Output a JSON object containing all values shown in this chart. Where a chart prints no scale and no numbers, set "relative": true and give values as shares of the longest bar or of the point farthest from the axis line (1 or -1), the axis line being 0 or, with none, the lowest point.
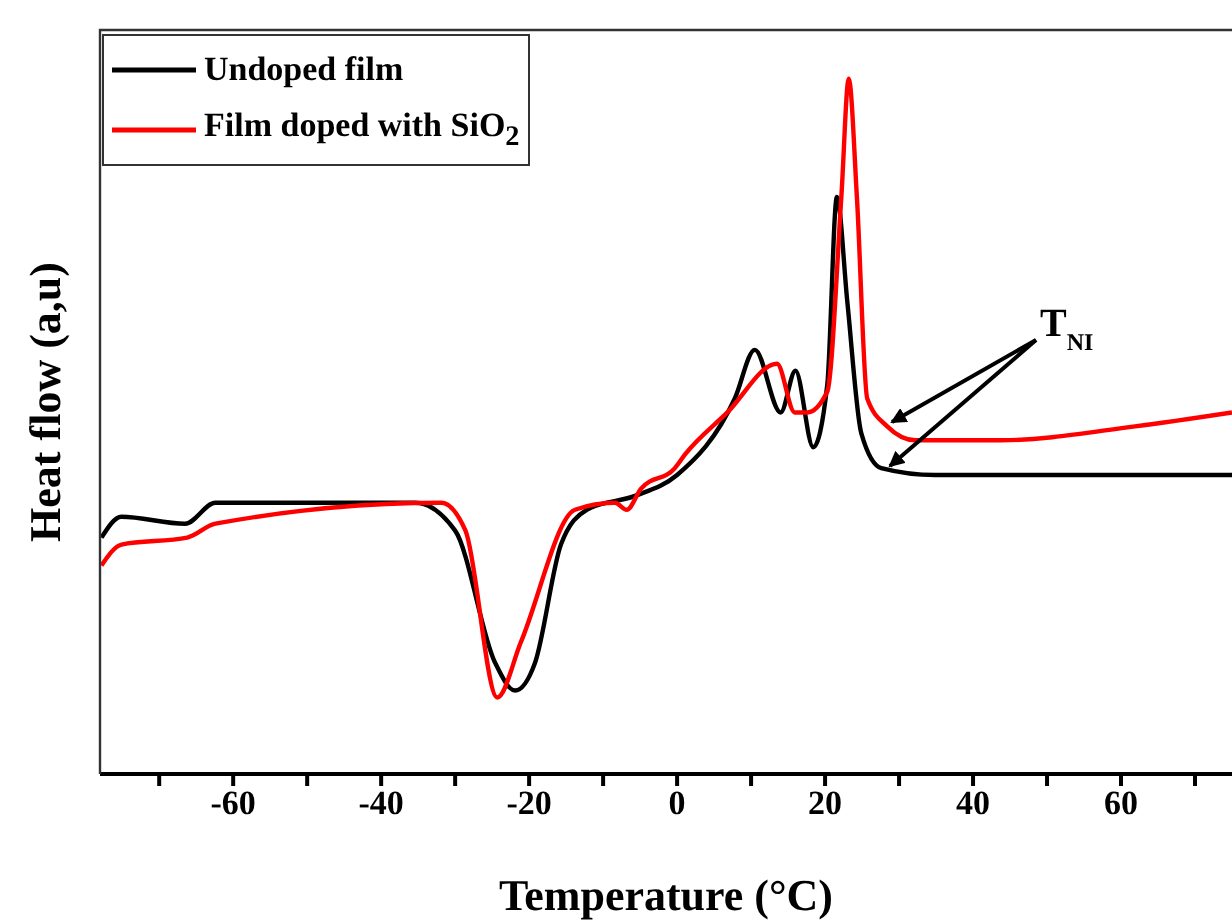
{
  "chart_data": {
    "type": "line",
    "relative": true,
    "xlabel": "Temperature (°C)",
    "ylabel": "Heat flow (a,u)",
    "xlim": [
      -78,
      75
    ],
    "xticks": [
      {
        "value": -70,
        "label": null
      },
      -60,
      {
        "value": -50,
        "label": null
      },
      -40,
      {
        "value": -30,
        "label": null
      },
      -20,
      {
        "value": -10,
        "label": null
      },
      0,
      {
        "value": 10,
        "label": null
      },
      20,
      {
        "value": 30,
        "label": null
      },
      40,
      {
        "value": 50,
        "label": null
      },
      60,
      {
        "value": 70,
        "label": null
      }
    ],
    "legend": "top left",
    "grid": false,
    "marker": "none",
    "line_style": "solid",
    "annotations": [
      "T$_{NI}$"
    ],
    "series": [
      {
        "name": "Undoped film",
        "color": "#000000",
        "x": [
          -77.8,
          -75.1,
          -66.5,
          -62.4,
          -35.4,
          -30,
          -24.6,
          -21.9,
          -19.2,
          -15.7,
          -12.2,
          -5.7,
          0,
          7.8,
          10.5,
          14,
          16,
          18.4,
          20.3,
          21.6,
          23,
          24.9,
          27.6,
          34.9,
          75
        ],
        "values": [
          0.34,
          0.37,
          0.36,
          0.39,
          0.39,
          0.35,
          0.16,
          0.12,
          0.16,
          0.33,
          0.38,
          0.4,
          0.43,
          0.54,
          0.61,
          0.52,
          0.58,
          0.47,
          0.56,
          0.83,
          0.68,
          0.49,
          0.44,
          0.43,
          0.43
        ]
      },
      {
        "name": "Film doped with SiO$_{2}$",
        "color": "#ff0000",
        "x": [
          -77.8,
          -75.1,
          -66.2,
          -62.4,
          -31.9,
          -28.6,
          -24.3,
          -21.1,
          -13.8,
          -8.4,
          -6.8,
          -4.9,
          -0.3,
          1.1,
          6.8,
          13.5,
          15.9,
          17.6,
          20.3,
          22.2,
          23.2,
          24.3,
          25.7,
          28.4,
          32.2,
          43.8,
          61.9,
          75
        ],
        "values": [
          0.3,
          0.33,
          0.34,
          0.36,
          0.39,
          0.35,
          0.11,
          0.19,
          0.38,
          0.39,
          0.38,
          0.41,
          0.44,
          0.46,
          0.52,
          0.59,
          0.52,
          0.52,
          0.55,
          0.83,
          1,
          0.83,
          0.54,
          0.5,
          0.48,
          0.48,
          0.5,
          0.52
        ]
      }
    ]
  }
}
